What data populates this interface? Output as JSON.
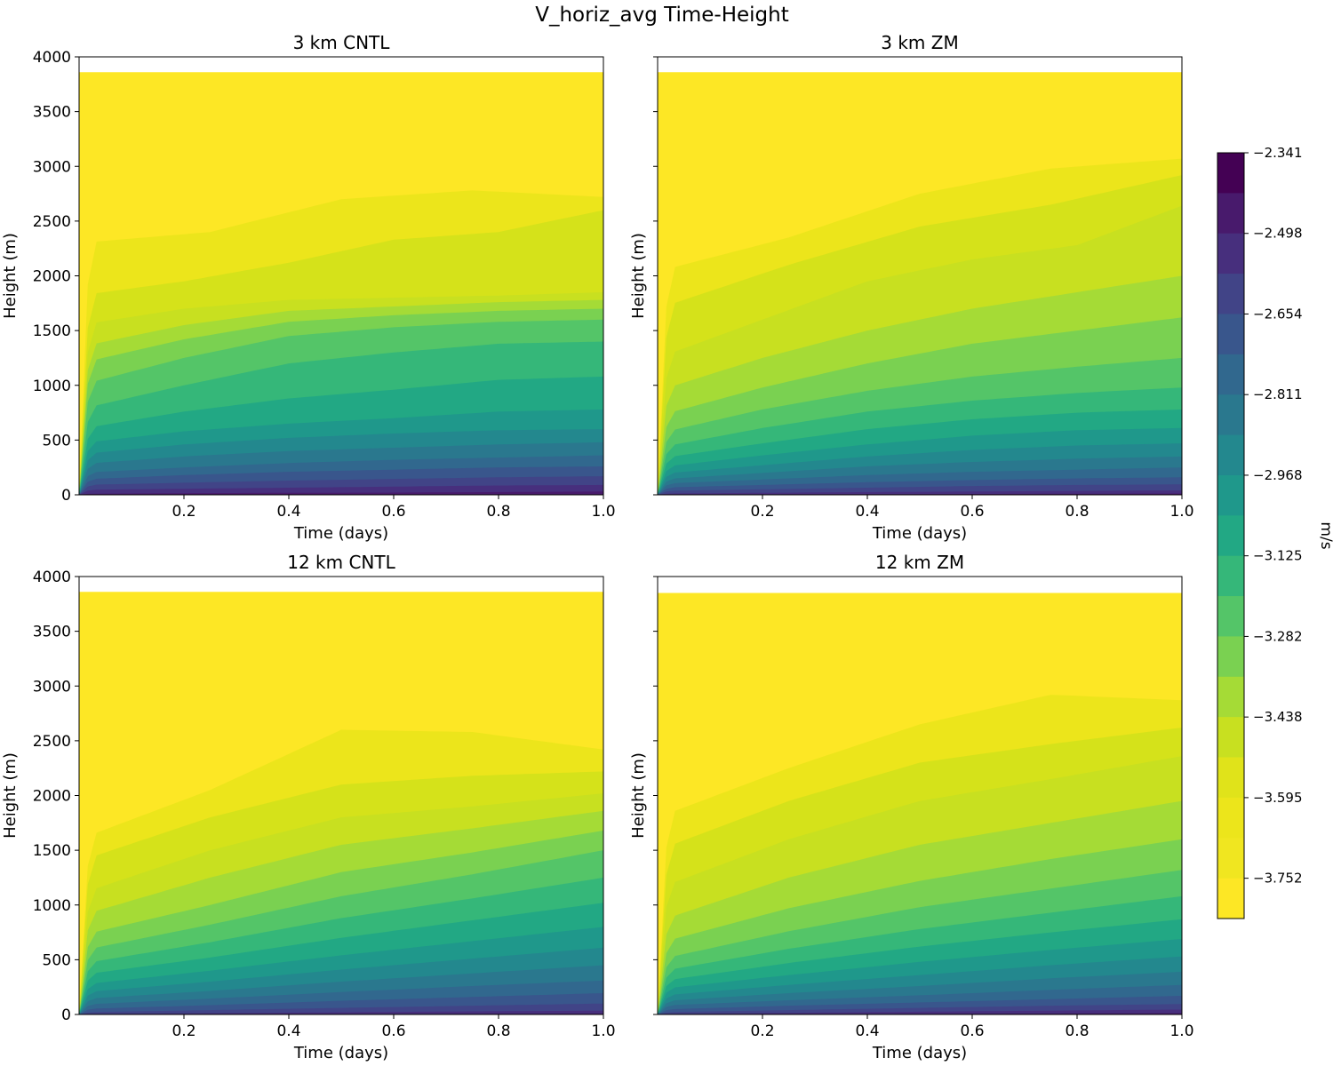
{
  "figure": {
    "title": "V_horiz_avg Time-Height"
  },
  "colorbar": {
    "label": "m/s",
    "ticks": [
      "−2.341",
      "−2.498",
      "−2.654",
      "−2.811",
      "−2.968",
      "−3.125",
      "−3.282",
      "−3.438",
      "−3.595",
      "−3.752"
    ]
  },
  "chart_data": [
    {
      "type": "contourf",
      "title": "3 km CNTL",
      "xlabel": "Time (days)",
      "ylabel": "Height (m)",
      "xlim": [
        0,
        1.0
      ],
      "ylim": [
        0,
        4000
      ],
      "xticks": [
        "0.2",
        "0.4",
        "0.6",
        "0.8",
        "1.0"
      ],
      "yticks": [
        "0",
        "500",
        "1000",
        "1500",
        "2000",
        "2500",
        "3000",
        "3500",
        "4000"
      ],
      "data_top": 3860,
      "contour_heights": [
        [
          0,
          0,
          0,
          0,
          0,
          0,
          0,
          0,
          0,
          0,
          0,
          0,
          0,
          0,
          0,
          0,
          0,
          0
        ],
        [
          2300,
          2400,
          2700,
          2780,
          2720
        ],
        [
          1820,
          1950,
          2120,
          2330,
          2400,
          2600
        ],
        [
          1550,
          1700,
          1780,
          1800,
          1820,
          1850
        ],
        [
          1350,
          1550,
          1680,
          1720,
          1760,
          1780
        ],
        [
          1200,
          1420,
          1580,
          1640,
          1680,
          1700
        ],
        [
          1000,
          1250,
          1450,
          1530,
          1580,
          1600
        ],
        [
          780,
          1000,
          1200,
          1300,
          1380,
          1400
        ],
        [
          600,
          760,
          880,
          960,
          1050,
          1080
        ],
        [
          470,
          580,
          650,
          700,
          760,
          780
        ],
        [
          370,
          460,
          520,
          560,
          590,
          600
        ],
        [
          280,
          350,
          400,
          430,
          460,
          480
        ],
        [
          200,
          250,
          290,
          320,
          340,
          360
        ],
        [
          140,
          180,
          210,
          230,
          250,
          260
        ],
        [
          90,
          110,
          130,
          145,
          160,
          170
        ],
        [
          45,
          55,
          65,
          75,
          85,
          90
        ],
        [
          10,
          15,
          18,
          20,
          25,
          30
        ]
      ]
    },
    {
      "type": "contourf",
      "title": "3 km ZM",
      "xlabel": "Time (days)",
      "ylabel": "Height (m)",
      "xlim": [
        0,
        1.0
      ],
      "ylim": [
        0,
        4000
      ],
      "xticks": [
        "0.2",
        "0.4",
        "0.6",
        "0.8",
        "1.0"
      ],
      "data_top": 3860,
      "contour_heights": [
        [
          0,
          0,
          0,
          0,
          0,
          0,
          0,
          0,
          0,
          0,
          0,
          0,
          0,
          0,
          0,
          0,
          0,
          0
        ],
        [
          2040,
          2350,
          2750,
          2980,
          3070
        ],
        [
          1700,
          2100,
          2450,
          2650,
          2920
        ],
        [
          1250,
          1600,
          1950,
          2150,
          2280,
          2640
        ],
        [
          950,
          1250,
          1500,
          1700,
          1850,
          2000
        ],
        [
          720,
          980,
          1200,
          1380,
          1500,
          1620
        ],
        [
          560,
          780,
          950,
          1080,
          1170,
          1250
        ],
        [
          430,
          610,
          760,
          860,
          930,
          980
        ],
        [
          330,
          470,
          600,
          690,
          750,
          780
        ],
        [
          250,
          360,
          460,
          540,
          590,
          610
        ],
        [
          190,
          270,
          350,
          410,
          450,
          470
        ],
        [
          140,
          200,
          260,
          300,
          330,
          350
        ],
        [
          100,
          140,
          180,
          210,
          230,
          250
        ],
        [
          65,
          90,
          115,
          135,
          150,
          160
        ],
        [
          35,
          50,
          65,
          80,
          90,
          95
        ],
        [
          12,
          18,
          25,
          30,
          35,
          40
        ],
        [
          2,
          4,
          6,
          8,
          10,
          12
        ]
      ]
    },
    {
      "type": "contourf",
      "title": "12 km CNTL",
      "xlabel": "Time (days)",
      "ylabel": "Height (m)",
      "xlim": [
        0,
        1.0
      ],
      "ylim": [
        0,
        4000
      ],
      "xticks": [
        "0.2",
        "0.4",
        "0.6",
        "0.8",
        "1.0"
      ],
      "yticks": [
        "0",
        "500",
        "1000",
        "1500",
        "2000",
        "2500",
        "3000",
        "3500",
        "4000"
      ],
      "data_top": 3860,
      "contour_heights": [
        [
          0,
          0,
          0,
          0,
          0,
          0,
          0,
          0,
          0,
          0,
          0,
          0,
          0,
          0,
          0,
          0,
          0,
          0
        ],
        [
          1600,
          2050,
          2600,
          2580,
          2420
        ],
        [
          1400,
          1800,
          2100,
          2180,
          2220
        ],
        [
          1100,
          1500,
          1800,
          1900,
          2020
        ],
        [
          900,
          1250,
          1550,
          1700,
          1860
        ],
        [
          720,
          1000,
          1300,
          1480,
          1680
        ],
        [
          580,
          820,
          1080,
          1280,
          1500
        ],
        [
          460,
          660,
          880,
          1060,
          1250
        ],
        [
          360,
          520,
          700,
          860,
          1020
        ],
        [
          270,
          400,
          540,
          670,
          800
        ],
        [
          200,
          300,
          410,
          510,
          610
        ],
        [
          140,
          215,
          300,
          375,
          450
        ],
        [
          90,
          145,
          205,
          260,
          310
        ],
        [
          50,
          85,
          125,
          160,
          195
        ],
        [
          20,
          40,
          60,
          80,
          100
        ],
        [
          5,
          12,
          20,
          28,
          35
        ],
        [
          0,
          0,
          2,
          5,
          8
        ]
      ]
    },
    {
      "type": "contourf",
      "title": "12 km ZM",
      "xlabel": "Time (days)",
      "ylabel": "Height (m)",
      "xlim": [
        0,
        1.0
      ],
      "ylim": [
        0,
        4000
      ],
      "xticks": [
        "0.2",
        "0.4",
        "0.6",
        "0.8",
        "1.0"
      ],
      "data_top": 3850,
      "contour_heights": [
        [
          0,
          0,
          0,
          0,
          0,
          0,
          0,
          0,
          0,
          0,
          0,
          0,
          0,
          0,
          0,
          0,
          0,
          0
        ],
        [
          1800,
          2250,
          2650,
          2920,
          2870
        ],
        [
          1500,
          1950,
          2300,
          2470,
          2620
        ],
        [
          1150,
          1600,
          1950,
          2150,
          2360
        ],
        [
          850,
          1250,
          1550,
          1750,
          1950
        ],
        [
          650,
          970,
          1220,
          1420,
          1600
        ],
        [
          500,
          760,
          980,
          1150,
          1320
        ],
        [
          390,
          600,
          780,
          930,
          1080
        ],
        [
          300,
          470,
          620,
          750,
          870
        ],
        [
          230,
          360,
          480,
          590,
          690
        ],
        [
          170,
          270,
          360,
          450,
          530
        ],
        [
          120,
          195,
          260,
          330,
          390
        ],
        [
          80,
          130,
          175,
          225,
          270
        ],
        [
          45,
          80,
          110,
          140,
          170
        ],
        [
          20,
          40,
          60,
          80,
          95
        ],
        [
          5,
          15,
          25,
          35,
          45
        ],
        [
          0,
          2,
          5,
          8,
          12
        ]
      ]
    }
  ]
}
